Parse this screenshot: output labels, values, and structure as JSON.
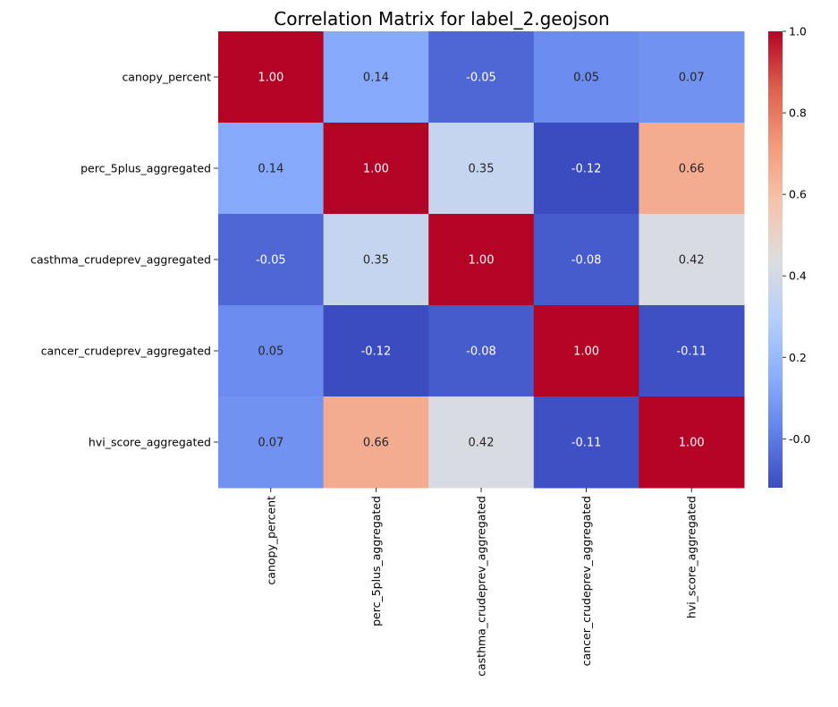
{
  "chart_data": {
    "type": "heatmap",
    "title": "Correlation Matrix for label_2.geojson",
    "xlabel": "",
    "ylabel": "",
    "colormap": "coolwarm",
    "row_labels": [
      "canopy_percent",
      "perc_5plus_aggregated",
      "casthma_crudeprev_aggregated",
      "cancer_crudeprev_aggregated",
      "hvi_score_aggregated"
    ],
    "col_labels": [
      "canopy_percent",
      "perc_5plus_aggregated",
      "casthma_crudeprev_aggregated",
      "cancer_crudeprev_aggregated",
      "hvi_score_aggregated"
    ],
    "values": [
      [
        1.0,
        0.14,
        -0.05,
        0.05,
        0.07
      ],
      [
        0.14,
        1.0,
        0.35,
        -0.12,
        0.66
      ],
      [
        -0.05,
        0.35,
        1.0,
        -0.08,
        0.42
      ],
      [
        0.05,
        -0.12,
        -0.08,
        1.0,
        -0.11
      ],
      [
        0.07,
        0.66,
        0.42,
        -0.11,
        1.0
      ]
    ],
    "cell_labels": [
      [
        "1.00",
        "0.14",
        "-0.05",
        "0.05",
        "0.07"
      ],
      [
        "0.14",
        "1.00",
        "0.35",
        "-0.12",
        "0.66"
      ],
      [
        "-0.05",
        "0.35",
        "1.00",
        "-0.08",
        "0.42"
      ],
      [
        "0.05",
        "-0.12",
        "-0.08",
        "1.00",
        "-0.11"
      ],
      [
        "0.07",
        "0.66",
        "0.42",
        "-0.11",
        "1.00"
      ]
    ],
    "color_range": [
      -0.12,
      1.0
    ],
    "colorbar_ticks": [
      -0.0,
      0.2,
      0.4,
      0.6,
      0.8,
      1.0
    ],
    "colorbar_tick_labels": [
      "-0.0",
      "0.2",
      "0.4",
      "0.6",
      "0.8",
      "1.0"
    ]
  }
}
